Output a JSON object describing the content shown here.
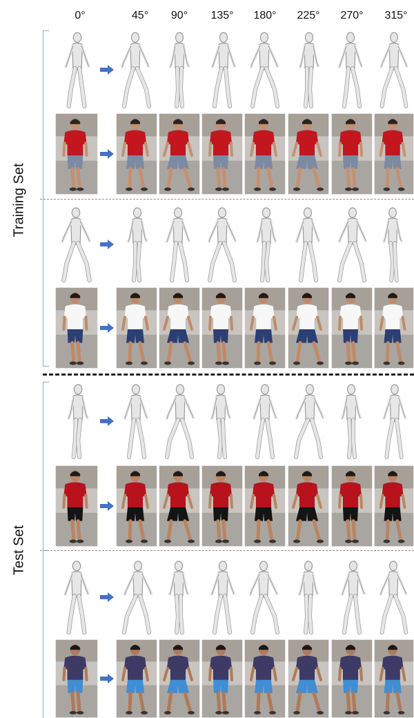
{
  "angles": [
    "0°",
    "45°",
    "90°",
    "135°",
    "180°",
    "225°",
    "270°",
    "315°"
  ],
  "sections": {
    "training": "Training Set",
    "test": "Test Set"
  },
  "colors": {
    "bracket": "#8fa6c8",
    "arrow": "#4472c4",
    "mesh_fill": "#e6e6e6",
    "mesh_stroke": "#9a9a9a",
    "ground": "#a9a6a2"
  },
  "rows": [
    {
      "kind": "mesh",
      "set": "training",
      "subject": 1
    },
    {
      "kind": "photo",
      "set": "training",
      "subject": 1,
      "shirt": "#c3161f",
      "pants": "#7c8aa3",
      "skin": "#c49070",
      "hair": "#2a2322"
    },
    {
      "kind": "mesh",
      "set": "training",
      "subject": 2
    },
    {
      "kind": "photo",
      "set": "training",
      "subject": 2,
      "shirt": "#f7f7f7",
      "pants": "#2c3f73",
      "skin": "#c08a66",
      "hair": "#1f1a18"
    },
    {
      "kind": "mesh",
      "set": "test",
      "subject": 3
    },
    {
      "kind": "photo",
      "set": "test",
      "subject": 3,
      "shirt": "#b8121c",
      "pants": "#141414",
      "skin": "#b98561",
      "hair": "#1e1a19"
    },
    {
      "kind": "mesh",
      "set": "test",
      "subject": 4
    },
    {
      "kind": "photo",
      "set": "test",
      "subject": 4,
      "shirt": "#3e3a66",
      "pants": "#3f8ed6",
      "skin": "#b07a58",
      "hair": "#1a1818"
    }
  ]
}
